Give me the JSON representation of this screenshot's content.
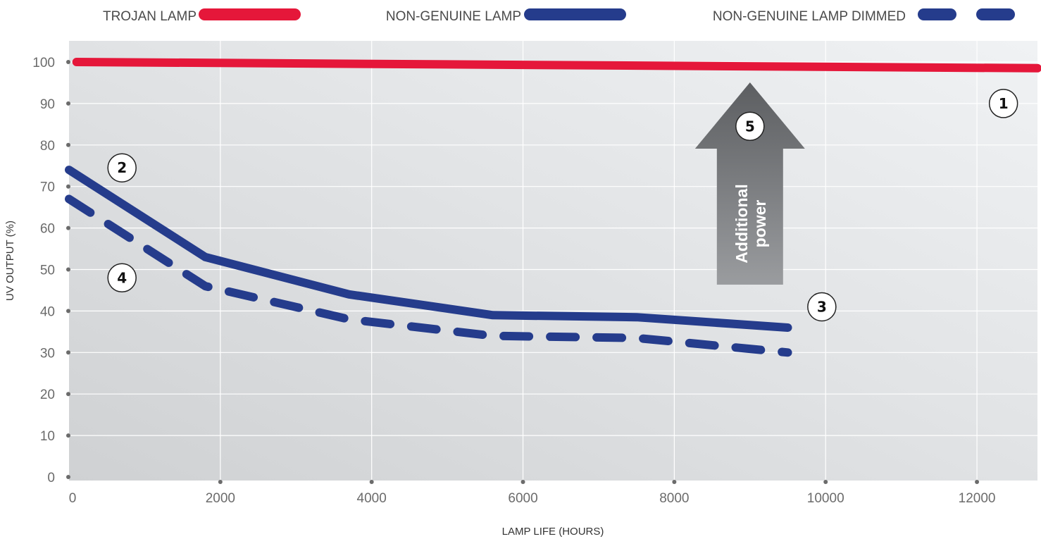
{
  "chart_data": {
    "type": "line",
    "xlabel": "LAMP LIFE (HOURS)",
    "ylabel": "UV OUTPUT (%)",
    "xlim": [
      0,
      12800
    ],
    "ylim": [
      0,
      105
    ],
    "x_ticks": [
      0,
      2000,
      4000,
      6000,
      8000,
      10000,
      12000
    ],
    "y_ticks": [
      0,
      10,
      20,
      30,
      40,
      50,
      60,
      70,
      80,
      90,
      100
    ],
    "grid": true,
    "legend_position": "top",
    "series": [
      {
        "name": "TROJAN LAMP",
        "color": "#e5173a",
        "style": "solid",
        "x": [
          100,
          12800
        ],
        "y": [
          100,
          98.5
        ]
      },
      {
        "name": "NON-GENUINE LAMP",
        "color": "#253c8c",
        "style": "solid",
        "x": [
          0,
          1800,
          3700,
          5600,
          7500,
          9500
        ],
        "y": [
          74,
          53,
          44,
          39,
          38.5,
          36
        ]
      },
      {
        "name": "NON-GENUINE LAMP DIMMED",
        "color": "#253c8c",
        "style": "dashed",
        "x": [
          0,
          1800,
          3700,
          5600,
          7500,
          9500
        ],
        "y": [
          67,
          46,
          38,
          34,
          33.5,
          30
        ]
      }
    ],
    "annotations": [
      {
        "label": "1",
        "x": 12350,
        "y": 90
      },
      {
        "label": "2",
        "x": 700,
        "y": 74.5
      },
      {
        "label": "3",
        "x": 9950,
        "y": 41
      },
      {
        "label": "4",
        "x": 700,
        "y": 48
      },
      {
        "label": "5",
        "x": 9000,
        "y": 84.5
      }
    ],
    "arrow": {
      "text_line1": "Additional",
      "text_line2": "power"
    }
  }
}
